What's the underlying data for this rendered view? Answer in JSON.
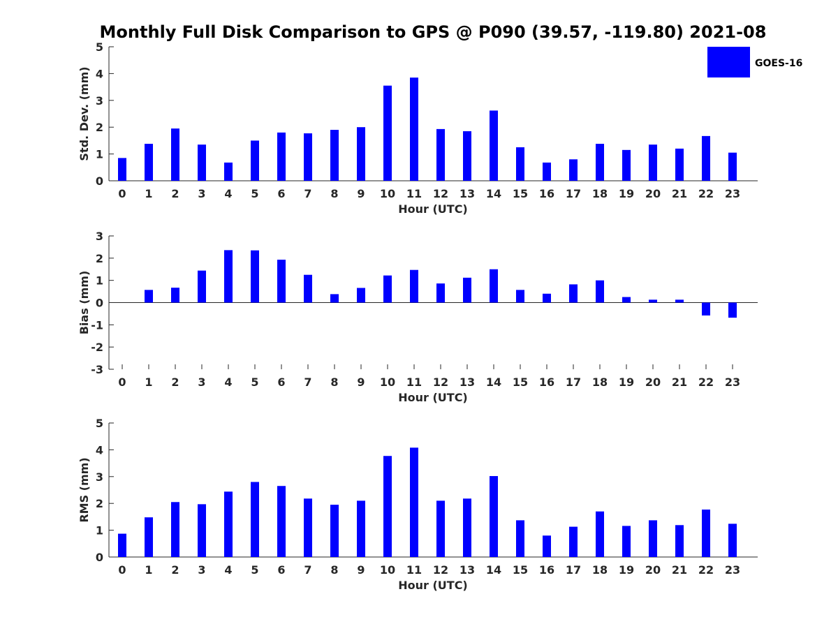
{
  "chart_data": {
    "title": "Monthly Full Disk Comparison to GPS @ P090 (39.57, -119.80) 2021-08",
    "legend": {
      "label": "GOES-16",
      "color": "#0000ff",
      "placement": "top-right"
    },
    "panels": [
      {
        "type": "bar",
        "xlabel": "Hour (UTC)",
        "ylabel": "Std. Dev. (mm)",
        "ylim": [
          0,
          5
        ],
        "yticks": [
          0,
          1,
          2,
          3,
          4,
          5
        ],
        "categories": [
          "0",
          "1",
          "2",
          "3",
          "4",
          "5",
          "6",
          "7",
          "8",
          "9",
          "10",
          "11",
          "12",
          "13",
          "14",
          "15",
          "16",
          "17",
          "18",
          "19",
          "20",
          "21",
          "22",
          "23"
        ],
        "values": [
          0.85,
          1.38,
          1.95,
          1.35,
          0.68,
          1.5,
          1.8,
          1.77,
          1.9,
          2.0,
          3.55,
          3.85,
          1.93,
          1.85,
          2.62,
          1.25,
          0.68,
          0.8,
          1.38,
          1.15,
          1.35,
          1.2,
          1.67,
          1.05
        ]
      },
      {
        "type": "bar",
        "xlabel": "Hour (UTC)",
        "ylabel": "Bias (mm)",
        "ylim": [
          -3,
          3
        ],
        "yticks": [
          -3,
          -2,
          -1,
          0,
          1,
          2,
          3
        ],
        "categories": [
          "0",
          "1",
          "2",
          "3",
          "4",
          "5",
          "6",
          "7",
          "8",
          "9",
          "10",
          "11",
          "12",
          "13",
          "14",
          "15",
          "16",
          "17",
          "18",
          "19",
          "20",
          "21",
          "22",
          "23"
        ],
        "values": [
          0.0,
          0.57,
          0.67,
          1.44,
          2.36,
          2.35,
          1.93,
          1.25,
          0.38,
          0.66,
          1.22,
          1.47,
          0.86,
          1.12,
          1.5,
          0.57,
          0.4,
          0.82,
          1.0,
          0.25,
          0.13,
          0.13,
          -0.58,
          -0.68
        ]
      },
      {
        "type": "bar",
        "xlabel": "Hour (UTC)",
        "ylabel": "RMS (mm)",
        "ylim": [
          0,
          5
        ],
        "yticks": [
          0,
          1,
          2,
          3,
          4,
          5
        ],
        "categories": [
          "0",
          "1",
          "2",
          "3",
          "4",
          "5",
          "6",
          "7",
          "8",
          "9",
          "10",
          "11",
          "12",
          "13",
          "14",
          "15",
          "16",
          "17",
          "18",
          "19",
          "20",
          "21",
          "22",
          "23"
        ],
        "values": [
          0.87,
          1.48,
          2.05,
          1.97,
          2.44,
          2.8,
          2.65,
          2.18,
          1.95,
          2.1,
          3.77,
          4.08,
          2.1,
          2.18,
          3.02,
          1.37,
          0.8,
          1.13,
          1.7,
          1.16,
          1.37,
          1.19,
          1.77,
          1.24
        ]
      }
    ]
  }
}
